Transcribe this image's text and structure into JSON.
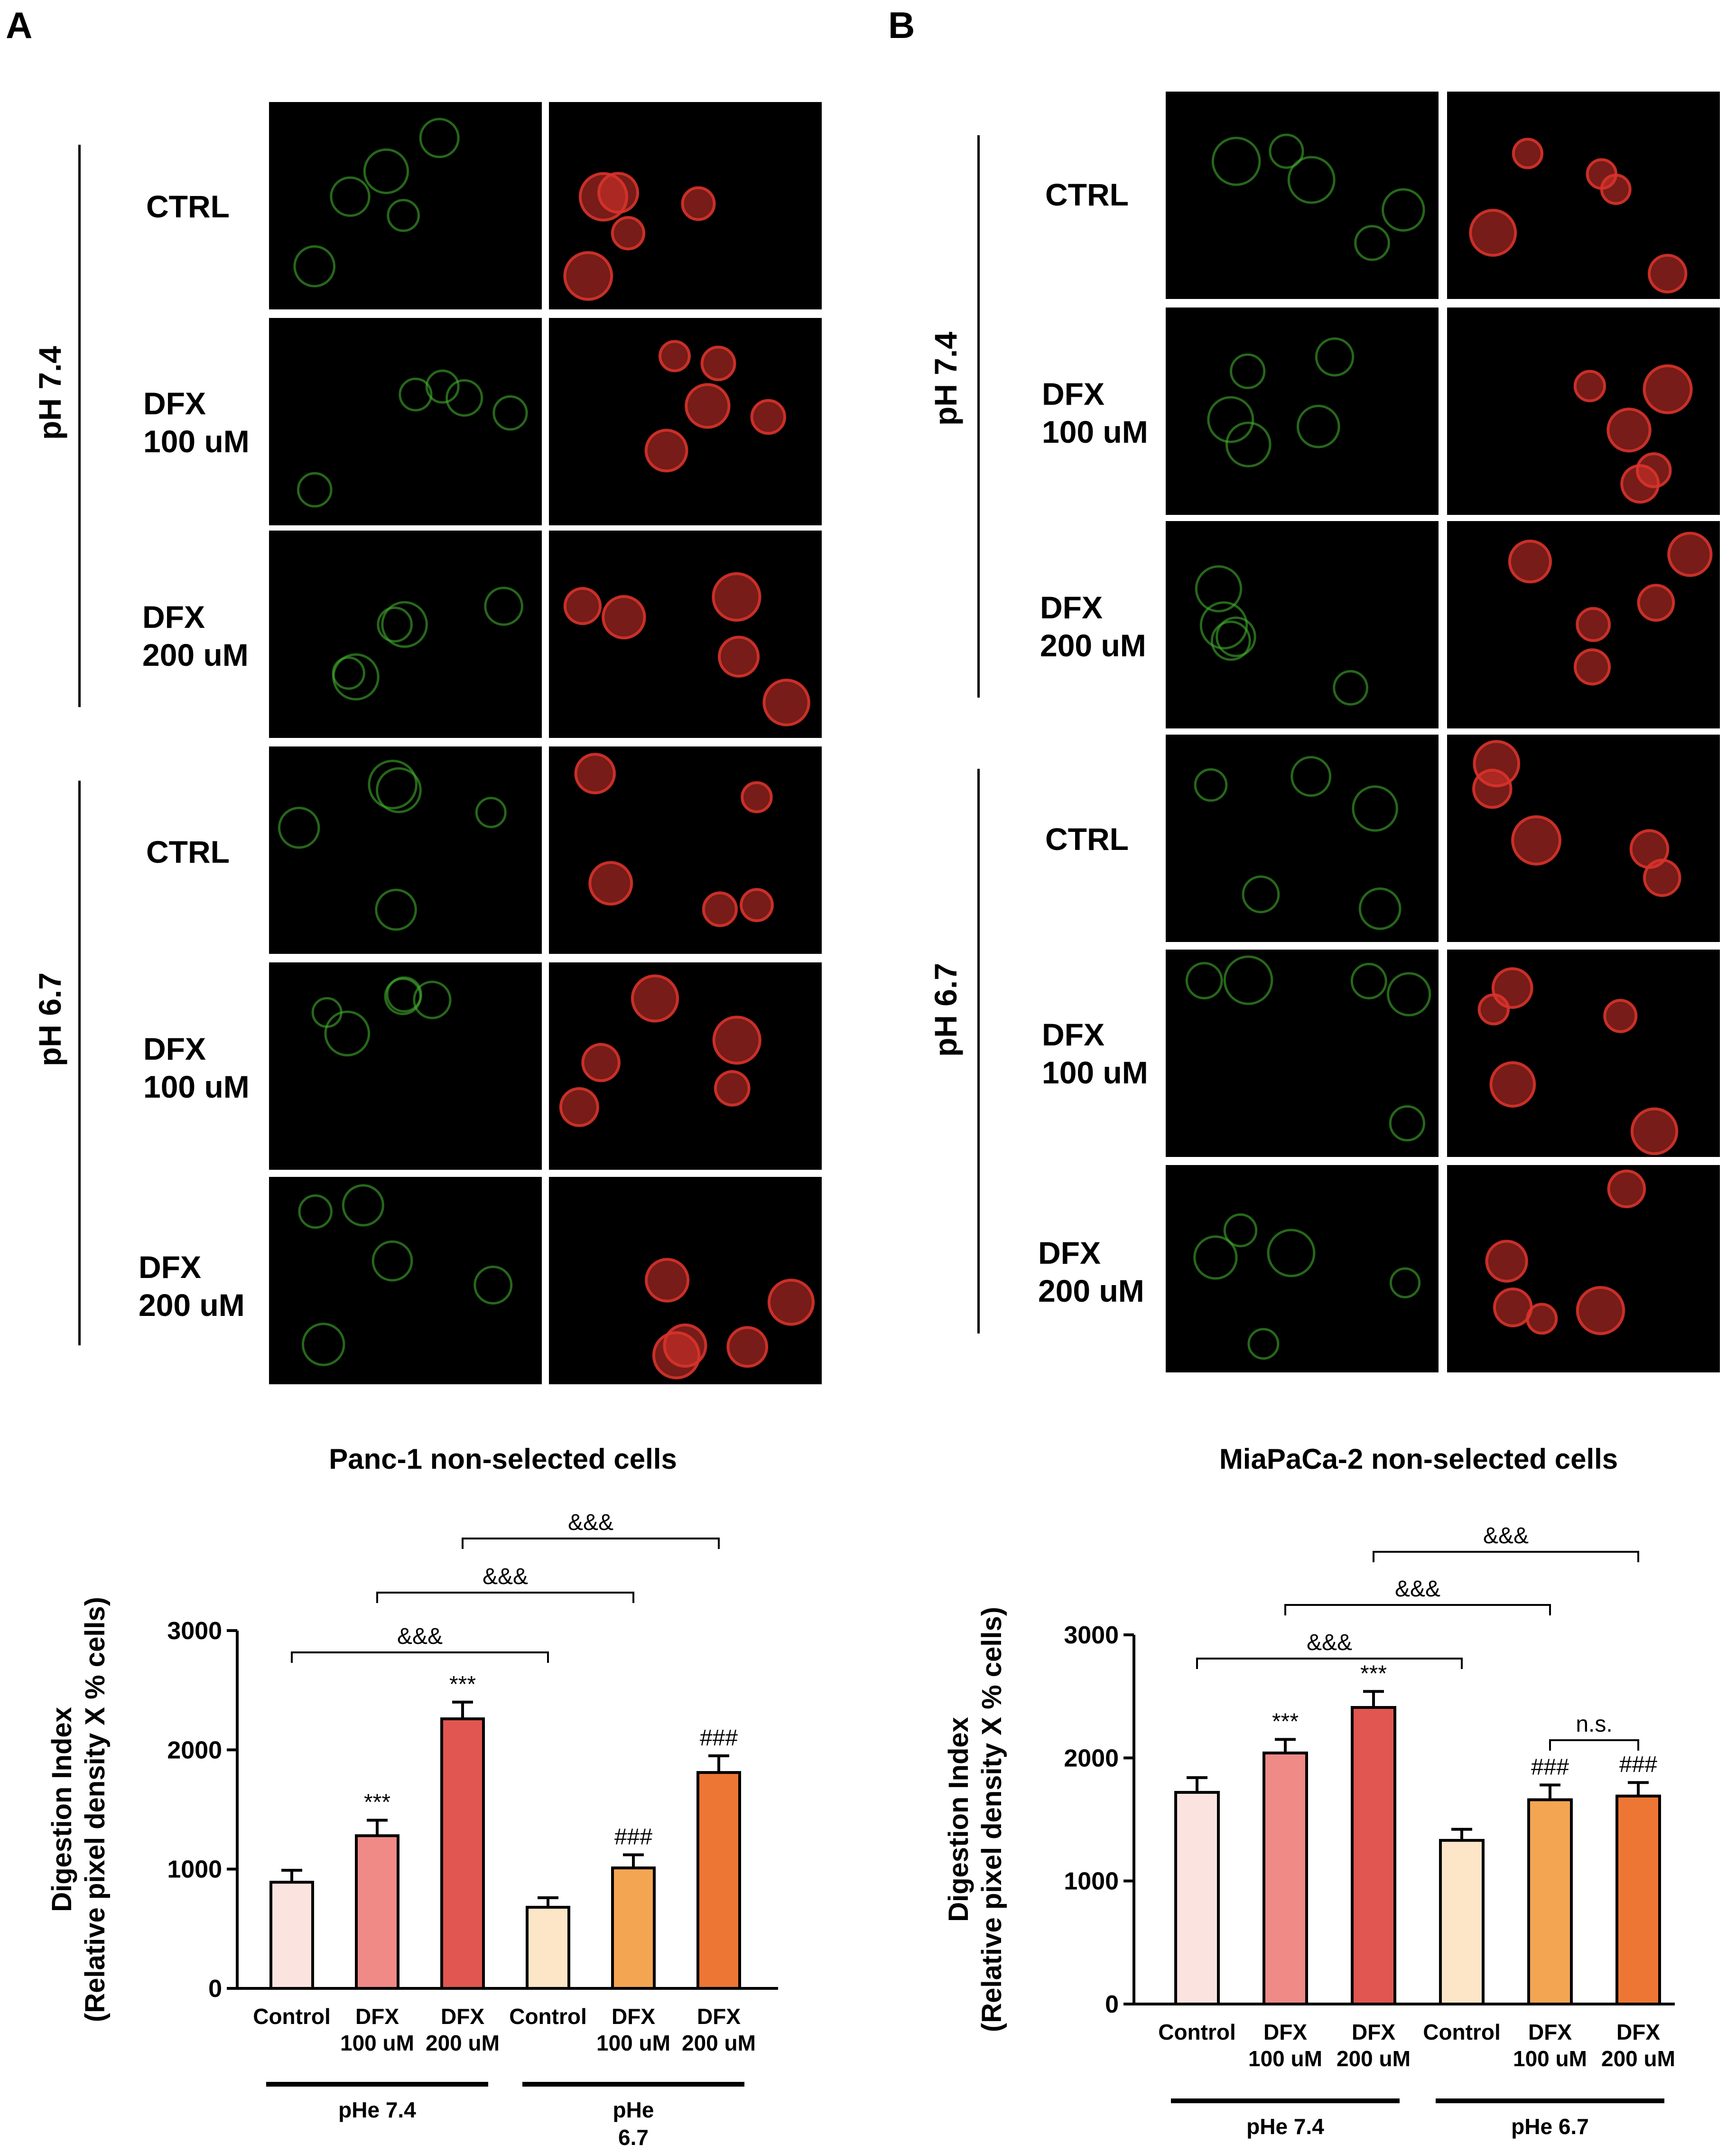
{
  "panelA": {
    "letter": "A",
    "groups": [
      {
        "label": "pH 7.4",
        "rows": [
          "CTRL",
          "DFX\n100 uM",
          "DFX\n200 uM"
        ]
      },
      {
        "label": "pH 6.7",
        "rows": [
          "CTRL",
          "DFX\n100 uM",
          "DFX\n200 uM"
        ]
      }
    ]
  },
  "panelB": {
    "letter": "B",
    "groups": [
      {
        "label": "pH 7.4",
        "rows": [
          "CTRL",
          "DFX\n100 uM",
          "DFX\n200 uM"
        ]
      },
      {
        "label": "pH 6.7",
        "rows": [
          "CTRL",
          "DFX\n100 uM",
          "DFX\n200 uM"
        ]
      }
    ]
  },
  "colors": {
    "green_stain": "#3fae2c",
    "red_stain": "#d8332b",
    "bar_fills": [
      "#fbe3e0",
      "#ef8a86",
      "#e25651",
      "#fde6c7",
      "#f3a552",
      "#ee7634"
    ]
  },
  "chart_data": [
    {
      "type": "bar",
      "title": "Panc-1 non-selected cells",
      "ylabel_line1": "Digestion Index",
      "ylabel_line2": "(Relative pixel density X % cells)",
      "ylim": [
        0,
        3000
      ],
      "yticks": [
        "0",
        "1000",
        "2000",
        "3000"
      ],
      "categories": [
        "Control",
        "DFX\n100 uM",
        "DFX\n200 uM",
        "Control",
        "DFX\n100 uM",
        "DFX\n200 uM"
      ],
      "values": [
        890,
        1280,
        2260,
        680,
        1010,
        1810
      ],
      "errors": [
        100,
        130,
        140,
        80,
        110,
        140
      ],
      "sig_labels": [
        "",
        "***",
        "***",
        "",
        "###",
        "###"
      ],
      "groups": [
        "pHe 7.4",
        "pHe\n6.7"
      ],
      "brackets": [
        {
          "from": 0,
          "to": 3,
          "label": "&&&"
        },
        {
          "from": 1,
          "to": 4,
          "label": "&&&"
        },
        {
          "from": 2,
          "to": 5,
          "label": "&&&"
        }
      ]
    },
    {
      "type": "bar",
      "title": "MiaPaCa-2 non-selected cells",
      "ylabel_line1": "Digestion Index",
      "ylabel_line2": "(Relative pixel density X % cells)",
      "ylim": [
        0,
        3000
      ],
      "yticks": [
        "0",
        "1000",
        "2000",
        "3000"
      ],
      "categories": [
        "Control",
        "DFX\n100 uM",
        "DFX\n200 uM",
        "Control",
        "DFX\n100 uM",
        "DFX\n200 uM"
      ],
      "values": [
        1720,
        2040,
        2410,
        1330,
        1660,
        1690
      ],
      "errors": [
        120,
        110,
        130,
        90,
        120,
        110
      ],
      "sig_labels": [
        "",
        "***",
        "***",
        "",
        "###",
        "###"
      ],
      "groups": [
        "pHe 7.4",
        "pHe 6.7"
      ],
      "brackets": [
        {
          "from": 0,
          "to": 3,
          "label": "&&&"
        },
        {
          "from": 1,
          "to": 4,
          "label": "&&&"
        },
        {
          "from": 2,
          "to": 5,
          "label": "&&&"
        },
        {
          "from": 4,
          "to": 5,
          "label": "n.s."
        }
      ]
    }
  ]
}
